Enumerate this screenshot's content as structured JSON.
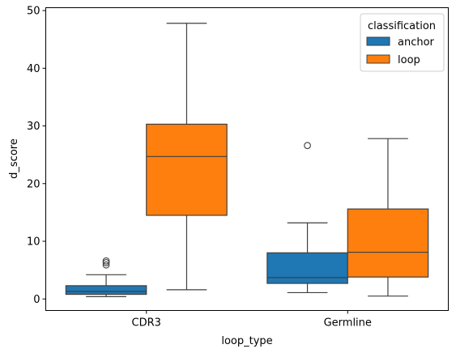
{
  "chart_data": {
    "type": "box",
    "xlabel": "loop_type",
    "ylabel": "d_score",
    "categories": [
      "CDR3",
      "Germline"
    ],
    "ylim": [
      -2,
      50.5
    ],
    "yticks": [
      0,
      10,
      20,
      30,
      40,
      50
    ],
    "legend": {
      "title": "classification",
      "position": "top-right"
    },
    "series": [
      {
        "name": "anchor",
        "color": "#1f77b4",
        "boxes": [
          {
            "category": "CDR3",
            "whisker_low": 0.4,
            "q1": 0.8,
            "median": 1.3,
            "q3": 2.3,
            "whisker_high": 4.2,
            "outliers": [
              5.9,
              6.3,
              6.6
            ]
          },
          {
            "category": "Germline",
            "whisker_low": 1.1,
            "q1": 2.7,
            "median": 3.7,
            "q3": 8.0,
            "whisker_high": 13.2,
            "outliers": [
              26.6
            ]
          }
        ]
      },
      {
        "name": "loop",
        "color": "#ff7f0e",
        "boxes": [
          {
            "category": "CDR3",
            "whisker_low": 1.6,
            "q1": 14.5,
            "median": 24.7,
            "q3": 30.3,
            "whisker_high": 47.8,
            "outliers": []
          },
          {
            "category": "Germline",
            "whisker_low": 0.5,
            "q1": 3.8,
            "median": 8.1,
            "q3": 15.6,
            "whisker_high": 27.8,
            "outliers": []
          }
        ]
      }
    ],
    "grid": false
  }
}
